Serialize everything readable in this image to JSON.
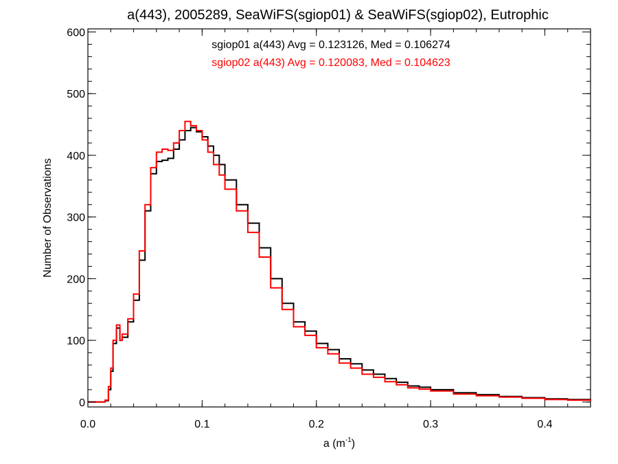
{
  "chart_data": {
    "type": "line",
    "title": "a(443), 2005289, SeaWiFS(sgiop01) & SeaWiFS(sgiop02), Eutrophic",
    "xlabel_base": "a (m",
    "xlabel_sup": "-1",
    "xlabel_close": ")",
    "ylabel": "Number of Observations",
    "xlim": [
      0.0,
      0.44
    ],
    "ylim": [
      -8,
      605
    ],
    "x_ticks": [
      {
        "value": 0.0,
        "label": "0.0"
      },
      {
        "value": 0.1,
        "label": "0.1"
      },
      {
        "value": 0.2,
        "label": "0.2"
      },
      {
        "value": 0.3,
        "label": "0.3"
      },
      {
        "value": 0.4,
        "label": "0.4"
      }
    ],
    "y_ticks": [
      {
        "value": 0,
        "label": "0"
      },
      {
        "value": 100,
        "label": "100"
      },
      {
        "value": 200,
        "label": "200"
      },
      {
        "value": 300,
        "label": "300"
      },
      {
        "value": 400,
        "label": "400"
      },
      {
        "value": 500,
        "label": "500"
      },
      {
        "value": 600,
        "label": "600"
      }
    ],
    "annotations": [
      {
        "text": "sgiop01 a(443) Avg = 0.123126, Med = 0.106274",
        "color": "#000000"
      },
      {
        "text": "sgiop02 a(443) Avg = 0.120083, Med = 0.104623",
        "color": "#ff0000"
      }
    ],
    "series": [
      {
        "color": "#000000",
        "x": [
          0.0,
          0.01,
          0.015,
          0.018,
          0.02,
          0.022,
          0.025,
          0.028,
          0.03,
          0.035,
          0.04,
          0.045,
          0.05,
          0.055,
          0.06,
          0.065,
          0.07,
          0.075,
          0.08,
          0.085,
          0.09,
          0.095,
          0.1,
          0.105,
          0.11,
          0.115,
          0.12,
          0.13,
          0.14,
          0.15,
          0.16,
          0.17,
          0.18,
          0.19,
          0.2,
          0.21,
          0.22,
          0.23,
          0.24,
          0.25,
          0.26,
          0.27,
          0.28,
          0.29,
          0.3,
          0.32,
          0.34,
          0.36,
          0.38,
          0.4,
          0.42,
          0.44
        ],
        "values": [
          0,
          0,
          2,
          20,
          50,
          95,
          120,
          100,
          105,
          130,
          165,
          230,
          310,
          370,
          390,
          392,
          395,
          410,
          425,
          440,
          445,
          438,
          430,
          415,
          400,
          385,
          360,
          320,
          290,
          250,
          200,
          160,
          130,
          115,
          95,
          85,
          70,
          62,
          52,
          45,
          38,
          32,
          26,
          24,
          20,
          15,
          12,
          9,
          7,
          5,
          4,
          3
        ]
      },
      {
        "color": "#ff0000",
        "x": [
          0.0,
          0.01,
          0.015,
          0.018,
          0.02,
          0.022,
          0.025,
          0.028,
          0.03,
          0.035,
          0.04,
          0.045,
          0.05,
          0.055,
          0.06,
          0.065,
          0.07,
          0.075,
          0.08,
          0.085,
          0.09,
          0.095,
          0.1,
          0.105,
          0.11,
          0.115,
          0.12,
          0.13,
          0.14,
          0.15,
          0.16,
          0.17,
          0.18,
          0.19,
          0.2,
          0.21,
          0.22,
          0.23,
          0.24,
          0.25,
          0.26,
          0.27,
          0.28,
          0.29,
          0.3,
          0.32,
          0.34,
          0.36,
          0.38,
          0.4,
          0.42,
          0.44
        ],
        "values": [
          0,
          0,
          3,
          25,
          55,
          100,
          125,
          100,
          110,
          135,
          175,
          245,
          320,
          380,
          405,
          410,
          408,
          420,
          440,
          455,
          448,
          440,
          425,
          405,
          385,
          368,
          345,
          310,
          275,
          235,
          185,
          150,
          122,
          108,
          88,
          78,
          63,
          55,
          45,
          40,
          33,
          28,
          23,
          21,
          18,
          13,
          10,
          8,
          6,
          4,
          3,
          2
        ]
      }
    ],
    "grid": false,
    "legend": "none"
  }
}
